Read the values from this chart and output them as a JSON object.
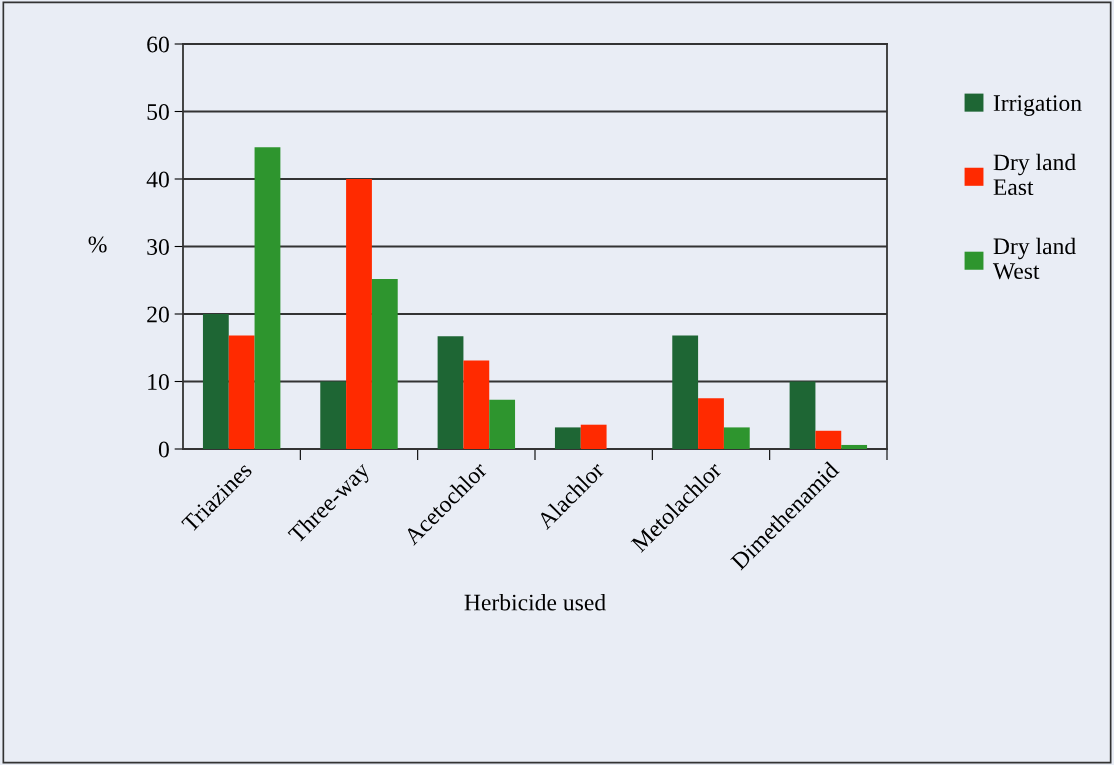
{
  "chart_data": {
    "type": "bar",
    "xlabel": "Herbicide used",
    "ylabel": "%",
    "categories": [
      "Triazines",
      "Three-way",
      "Acetochlor",
      "Alachlor",
      "Metolachlor",
      "Dimethenamid"
    ],
    "series": [
      {
        "name": "Irrigation",
        "color": "#1e6634",
        "values": [
          20,
          10,
          16.7,
          3.2,
          16.8,
          10
        ]
      },
      {
        "name": "Dry land East",
        "color": "#ff2a00",
        "values": [
          16.8,
          40,
          13.1,
          3.6,
          7.5,
          2.7
        ]
      },
      {
        "name": "Dry land West",
        "color": "#2e952e",
        "values": [
          44.7,
          25.2,
          7.3,
          0,
          3.2,
          0.6
        ]
      }
    ],
    "ylim": [
      0,
      60
    ],
    "yticks": [
      0,
      10,
      20,
      30,
      40,
      50,
      60
    ],
    "grid": "y",
    "legend": "right"
  }
}
